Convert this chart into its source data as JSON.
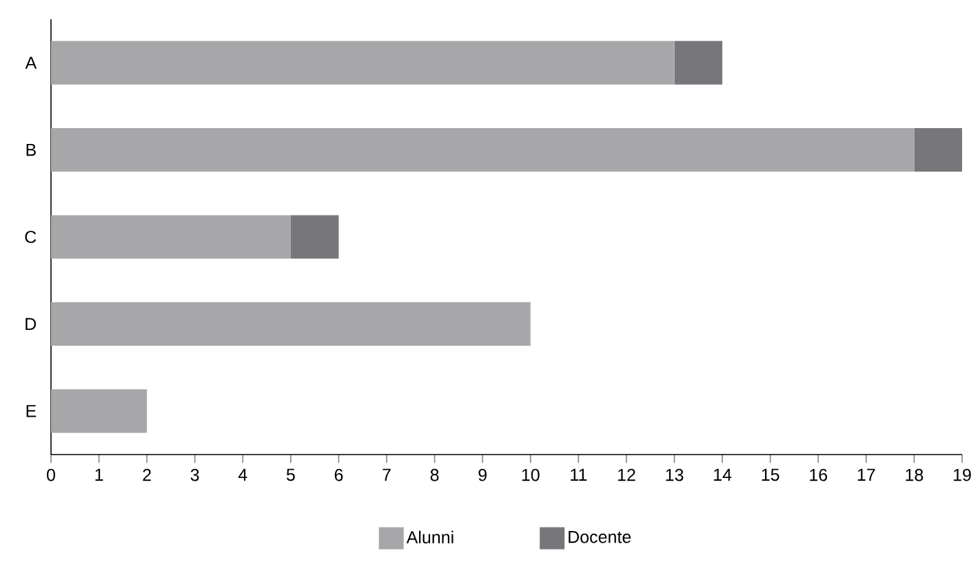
{
  "chart_data": {
    "type": "bar",
    "orientation": "horizontal",
    "stacked": true,
    "categories": [
      "A",
      "B",
      "C",
      "D",
      "E"
    ],
    "series": [
      {
        "name": "Alunni",
        "color": "#a7a7aa",
        "values": [
          13,
          18,
          5,
          10,
          2
        ]
      },
      {
        "name": "Docente",
        "color": "#77777b",
        "values": [
          1,
          1,
          1,
          0,
          0
        ]
      }
    ],
    "xlim": [
      0,
      19
    ],
    "xticks": [
      0,
      1,
      2,
      3,
      4,
      5,
      6,
      7,
      8,
      9,
      10,
      11,
      12,
      13,
      14,
      15,
      16,
      17,
      18,
      19
    ],
    "legend": "bottom",
    "grid": false
  }
}
